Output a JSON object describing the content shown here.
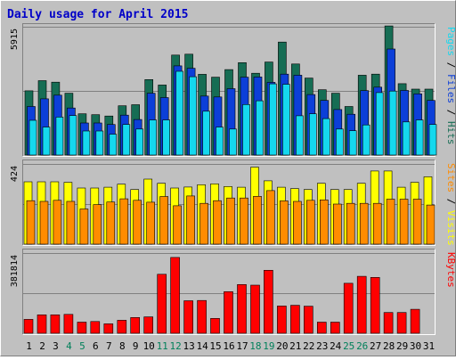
{
  "chart_data": {
    "type": "bar",
    "title": "Daily usage for April 2015",
    "categories": [
      "1",
      "2",
      "3",
      "4",
      "5",
      "6",
      "7",
      "8",
      "9",
      "10",
      "11",
      "12",
      "13",
      "14",
      "15",
      "16",
      "17",
      "18",
      "19",
      "20",
      "21",
      "22",
      "23",
      "24",
      "25",
      "26",
      "27",
      "28",
      "29",
      "30",
      "31"
    ],
    "weekend_days": [
      "4",
      "5",
      "11",
      "12",
      "18",
      "19",
      "25",
      "26"
    ],
    "panels": [
      {
        "id": "top",
        "max_label": "5915",
        "ylim": [
          0,
          5915
        ],
        "series": [
          {
            "name": "Hits",
            "color": "#166d54",
            "values": [
              2960,
              3430,
              3360,
              2850,
              1900,
              1860,
              1800,
              2270,
              2320,
              3480,
              3230,
              4610,
              4650,
              3720,
              3590,
              3940,
              4260,
              3770,
              4290,
              5210,
              4200,
              3550,
              3010,
              2850,
              2240,
              3680,
              3730,
              5950,
              3290,
              3040,
              3040
            ]
          },
          {
            "name": "Files",
            "color": "#0c3fd8",
            "values": [
              2240,
              2590,
              2760,
              2170,
              1480,
              1480,
              1410,
              1840,
              1640,
              2850,
              2650,
              4110,
              4000,
              2720,
              2680,
              3060,
              3590,
              3600,
              3350,
              3730,
              3680,
              2790,
              2520,
              2100,
              1880,
              2970,
              3130,
              4890,
              2980,
              2820,
              2520
            ]
          },
          {
            "name": "Pages",
            "color": "#15d8ee",
            "values": [
              1600,
              1290,
              1750,
              1820,
              1110,
              1110,
              960,
              1410,
              1200,
              1620,
              1620,
              3860,
              3610,
              2020,
              1290,
              1200,
              2330,
              2500,
              3280,
              3260,
              1810,
              1900,
              1680,
              1200,
              1120,
              1390,
              2880,
              2950,
              1530,
              1620,
              1410
            ]
          }
        ]
      },
      {
        "id": "middle",
        "max_label": "424",
        "ylim": [
          0,
          424
        ],
        "series": [
          {
            "name": "Visits",
            "color": "#ffff00",
            "values": [
              330,
              330,
              330,
              327,
              297,
              297,
              301,
              317,
              289,
              344,
              322,
              297,
              302,
              314,
              319,
              305,
              301,
              407,
              335,
              301,
              294,
              289,
              322,
              289,
              289,
              322,
              387,
              387,
              301,
              327,
              356
            ]
          },
          {
            "name": "Sites",
            "color": "#ff8c00",
            "values": [
              230,
              226,
              232,
              226,
              186,
              209,
              223,
              240,
              232,
              222,
              252,
              203,
              255,
              216,
              230,
              244,
              244,
              253,
              283,
              229,
              226,
              232,
              234,
              212,
              216,
              216,
              216,
              238,
              238,
              238,
              207
            ]
          }
        ]
      },
      {
        "id": "bottom",
        "max_label": "381814",
        "ylim": [
          0,
          381814
        ],
        "series": [
          {
            "name": "KBytes",
            "color": "#ff0000",
            "values": [
              66000,
              88000,
              88000,
              90000,
              53000,
              56000,
              45000,
              62000,
              75000,
              78000,
              281000,
              361000,
              155000,
              156000,
              71000,
              198000,
              232000,
              229000,
              300000,
              130000,
              133000,
              129000,
              53000,
              53000,
              238000,
              271000,
              266000,
              99000,
              99000,
              114000,
              0
            ]
          }
        ]
      }
    ]
  }
}
